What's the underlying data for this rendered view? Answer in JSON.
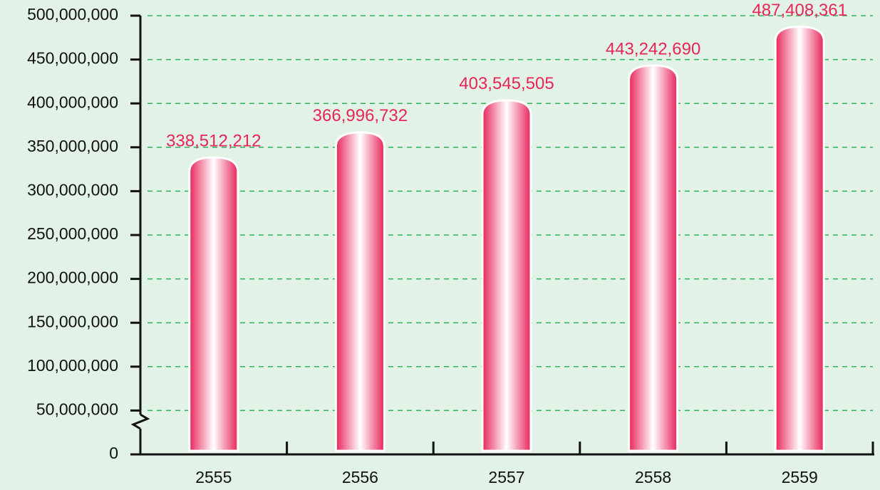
{
  "chart_data": {
    "type": "bar",
    "categories": [
      "2555",
      "2556",
      "2557",
      "2558",
      "2559"
    ],
    "values": [
      338512212,
      366996732,
      403545505,
      443242690,
      487408361
    ],
    "value_labels": [
      "338,512,212",
      "366,996,732",
      "403,545,505",
      "443,242,690",
      "487,408,361"
    ],
    "color": "#e8255a",
    "ylim": [
      0,
      500000000
    ],
    "yticks": [
      0,
      {
        "value": 50000000,
        "label": "50,000,000"
      },
      {
        "value": 100000000,
        "label": "100,000,000"
      },
      {
        "value": 150000000,
        "label": "150,000,000"
      },
      {
        "value": 200000000,
        "label": "200,000,000"
      },
      {
        "value": 250000000,
        "label": "250,000,000"
      },
      {
        "value": 300000000,
        "label": "300,000,000"
      },
      {
        "value": 350000000,
        "label": "350,000,000"
      },
      {
        "value": 400000000,
        "label": "400,000,000"
      },
      {
        "value": 450000000,
        "label": "450,000,000"
      },
      {
        "value": 500000000,
        "label": "500,000,000"
      }
    ],
    "grid": true
  }
}
